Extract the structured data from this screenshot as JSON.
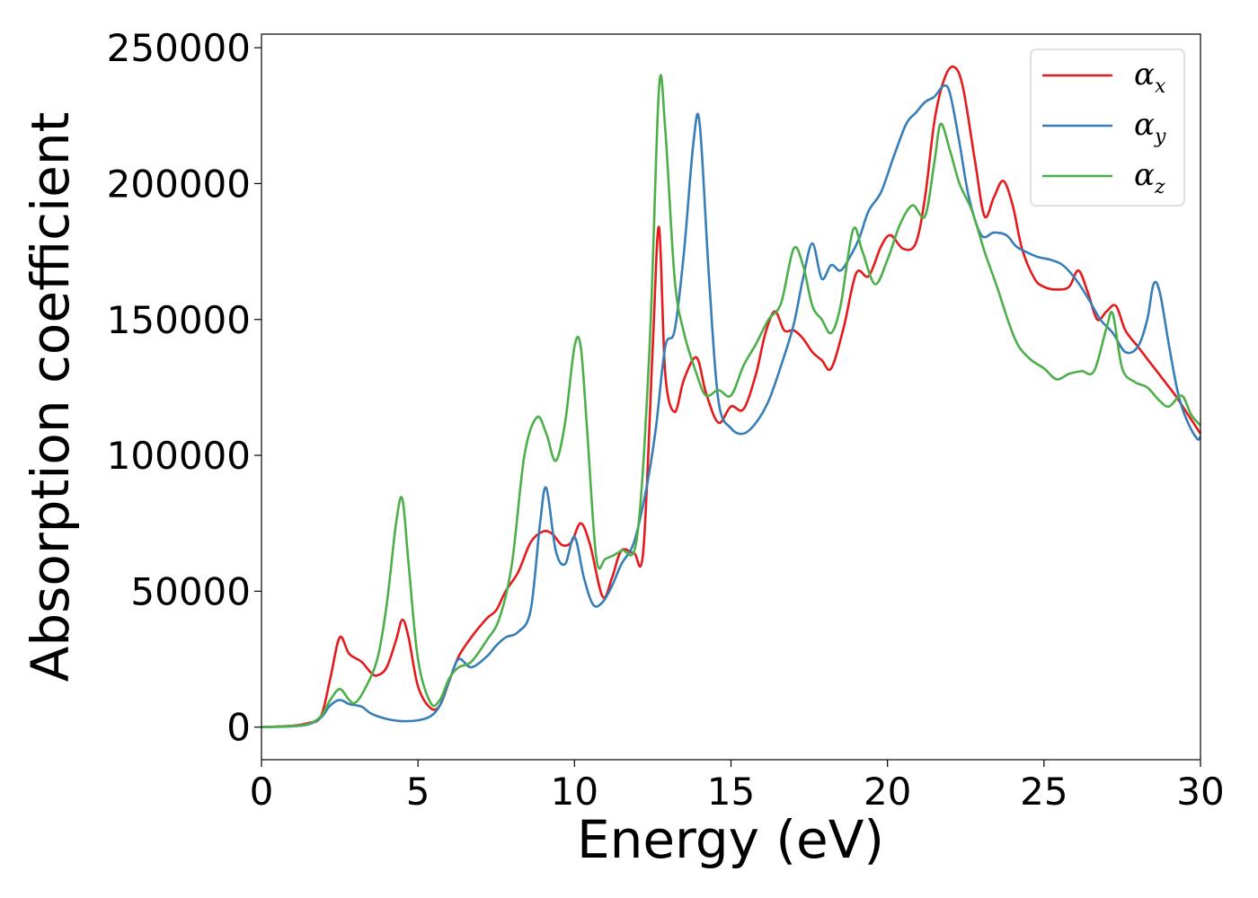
{
  "chart_data": {
    "type": "line",
    "xlabel": "Energy (eV)",
    "ylabel": "Absorption coefficient",
    "xlim": [
      0,
      30
    ],
    "ylim": [
      -12000,
      255000
    ],
    "xticks": [
      "0",
      "5",
      "10",
      "15",
      "20",
      "25",
      "30"
    ],
    "yticks": [
      "0",
      "50000",
      "100000",
      "150000",
      "200000",
      "250000"
    ],
    "grid": false,
    "legend_position": "top-right",
    "series": [
      {
        "name": "α",
        "subscript": "x",
        "color": "#e41a1c",
        "x": [
          0,
          1,
          1.5,
          1.9,
          2.2,
          2.5,
          2.8,
          3.2,
          3.5,
          3.7,
          4.0,
          4.3,
          4.5,
          4.7,
          5.0,
          5.4,
          5.7,
          6.0,
          6.3,
          6.7,
          7.2,
          7.5,
          7.8,
          8.2,
          8.6,
          9.0,
          9.3,
          9.6,
          9.9,
          10.2,
          10.5,
          10.9,
          11.2,
          11.5,
          11.9,
          12.2,
          12.5,
          12.7,
          12.9,
          13.2,
          13.5,
          13.9,
          14.2,
          14.6,
          15.0,
          15.4,
          15.8,
          16.1,
          16.4,
          16.7,
          17.0,
          17.3,
          17.6,
          17.9,
          18.2,
          18.6,
          19.0,
          19.4,
          19.8,
          20.1,
          20.5,
          20.9,
          21.2,
          21.5,
          21.8,
          22.1,
          22.4,
          22.8,
          23.1,
          23.4,
          23.7,
          24.0,
          24.3,
          24.7,
          25.0,
          25.4,
          25.8,
          26.1,
          26.4,
          26.7,
          27.0,
          27.3,
          27.6,
          28.0,
          28.4,
          28.8,
          29.2,
          29.6,
          30.0
        ],
        "y": [
          0,
          500,
          1500,
          4000,
          18000,
          33000,
          27000,
          24000,
          20000,
          19000,
          22000,
          32000,
          39500,
          33000,
          15000,
          7000,
          8000,
          17000,
          26000,
          33000,
          40000,
          43000,
          50000,
          57000,
          68000,
          72000,
          71000,
          67000,
          68000,
          75000,
          67000,
          48000,
          55000,
          65000,
          64000,
          65000,
          140000,
          184000,
          130000,
          116000,
          128000,
          136000,
          123000,
          112000,
          118000,
          117000,
          130000,
          145000,
          153000,
          146000,
          146000,
          143000,
          138000,
          135000,
          132000,
          147000,
          167000,
          166000,
          177000,
          181000,
          176000,
          178000,
          195000,
          223000,
          238000,
          243000,
          236000,
          208000,
          188000,
          195000,
          201000,
          192000,
          176000,
          165000,
          162000,
          161000,
          162000,
          168000,
          160000,
          150000,
          153000,
          155000,
          146000,
          140000,
          134000,
          128000,
          122000,
          115000,
          108000
        ]
      },
      {
        "name": "α",
        "subscript": "y",
        "color": "#377eb8",
        "x": [
          0,
          1,
          1.5,
          1.9,
          2.2,
          2.5,
          2.8,
          3.2,
          3.5,
          4.0,
          4.5,
          5.0,
          5.4,
          5.7,
          6.0,
          6.3,
          6.7,
          7.2,
          7.5,
          7.8,
          8.2,
          8.6,
          8.9,
          9.1,
          9.4,
          9.7,
          10.0,
          10.3,
          10.6,
          10.9,
          11.2,
          11.5,
          11.9,
          12.3,
          12.6,
          12.9,
          13.2,
          13.5,
          13.8,
          14.0,
          14.3,
          14.6,
          15.0,
          15.4,
          15.8,
          16.2,
          16.6,
          17.0,
          17.3,
          17.6,
          17.9,
          18.2,
          18.5,
          18.8,
          19.1,
          19.4,
          19.8,
          20.2,
          20.6,
          20.9,
          21.2,
          21.5,
          21.8,
          22.0,
          22.3,
          22.6,
          23.0,
          23.4,
          23.8,
          24.1,
          24.4,
          24.8,
          25.2,
          25.6,
          26.0,
          26.4,
          26.8,
          27.2,
          27.6,
          28.0,
          28.3,
          28.5,
          28.7,
          29.0,
          29.3,
          29.6,
          29.9,
          30.0
        ],
        "y": [
          0,
          300,
          1000,
          3500,
          8000,
          10000,
          8500,
          7500,
          5000,
          3000,
          2200,
          2500,
          4000,
          8000,
          17000,
          25000,
          22000,
          26000,
          30000,
          33000,
          35000,
          43000,
          75000,
          88000,
          65000,
          60000,
          70000,
          55000,
          45000,
          46000,
          52000,
          60000,
          68000,
          88000,
          110000,
          140000,
          146000,
          175000,
          215000,
          222000,
          165000,
          120000,
          110000,
          108000,
          112000,
          120000,
          133000,
          148000,
          165000,
          178000,
          165000,
          170000,
          168000,
          173000,
          180000,
          190000,
          197000,
          210000,
          222000,
          226000,
          230000,
          232000,
          236000,
          233000,
          215000,
          195000,
          181000,
          182000,
          181000,
          177000,
          175000,
          173000,
          172000,
          170000,
          165000,
          158000,
          150000,
          145000,
          138000,
          140000,
          150000,
          163000,
          160000,
          140000,
          122000,
          112000,
          106000,
          107000
        ]
      },
      {
        "name": "α",
        "subscript": "z",
        "color": "#4daf4a",
        "x": [
          0,
          1,
          1.5,
          1.9,
          2.2,
          2.5,
          2.8,
          3.0,
          3.3,
          3.7,
          4.0,
          4.3,
          4.5,
          4.7,
          5.0,
          5.4,
          5.7,
          6.0,
          6.3,
          6.7,
          7.2,
          7.6,
          8.0,
          8.4,
          8.8,
          9.1,
          9.4,
          9.7,
          10.0,
          10.2,
          10.4,
          10.7,
          11.0,
          11.5,
          12.0,
          12.4,
          12.7,
          12.9,
          13.2,
          13.5,
          13.9,
          14.2,
          14.6,
          15.0,
          15.4,
          15.8,
          16.2,
          16.6,
          17.0,
          17.3,
          17.6,
          17.9,
          18.2,
          18.5,
          18.9,
          19.2,
          19.6,
          20.0,
          20.4,
          20.8,
          21.2,
          21.5,
          21.7,
          22.0,
          22.3,
          22.7,
          23.1,
          23.5,
          23.9,
          24.2,
          24.6,
          25.0,
          25.4,
          25.8,
          26.2,
          26.6,
          27.0,
          27.2,
          27.5,
          27.9,
          28.3,
          28.7,
          29.0,
          29.4,
          29.7,
          30.0
        ],
        "y": [
          0,
          400,
          1200,
          4000,
          10000,
          14000,
          10000,
          9000,
          14000,
          25000,
          45000,
          75000,
          84000,
          60000,
          25000,
          9000,
          10000,
          18000,
          22000,
          24000,
          32000,
          40000,
          60000,
          100000,
          114000,
          108000,
          98000,
          112000,
          140000,
          140000,
          110000,
          62000,
          62000,
          65000,
          70000,
          140000,
          235000,
          220000,
          165000,
          145000,
          130000,
          122000,
          124000,
          122000,
          133000,
          141000,
          150000,
          156000,
          176000,
          170000,
          155000,
          150000,
          145000,
          155000,
          183000,
          175000,
          163000,
          172000,
          185000,
          192000,
          188000,
          208000,
          222000,
          212000,
          200000,
          190000,
          175000,
          162000,
          148000,
          140000,
          135000,
          132000,
          128000,
          130000,
          131000,
          131000,
          147000,
          152000,
          132000,
          127000,
          125000,
          120000,
          118000,
          122000,
          115000,
          111000
        ]
      }
    ]
  }
}
